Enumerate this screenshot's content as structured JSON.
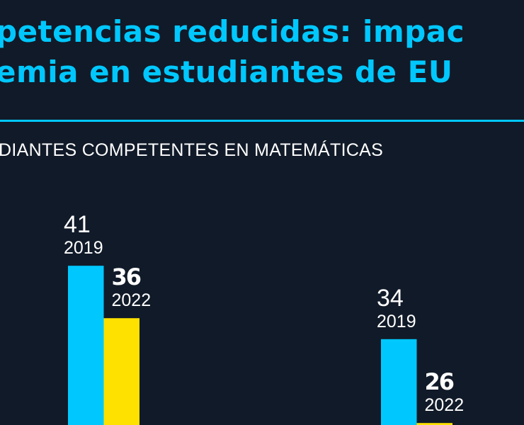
{
  "header": {
    "title_line1": "petencias reducidas: impac",
    "title_line2": "emia en estudiantes de EU",
    "subtitle": "DIANTES COMPETENTES EN MATEMÁTICAS"
  },
  "colors": {
    "background": "#111a28",
    "accent": "#00c8ff",
    "series_2019": "#00c8ff",
    "series_2022": "#ffe100"
  },
  "chart_data": {
    "type": "bar",
    "title": "",
    "groups": [
      {
        "values": [
          {
            "year": "2019",
            "value": 41,
            "label": "41"
          },
          {
            "year": "2022",
            "value": 36,
            "label": "36"
          }
        ]
      },
      {
        "values": [
          {
            "year": "2019",
            "value": 34,
            "label": "34"
          },
          {
            "year": "2022",
            "value": 26,
            "label": "26"
          }
        ]
      }
    ],
    "series": [
      {
        "name": "2019"
      },
      {
        "name": "2022"
      }
    ]
  }
}
